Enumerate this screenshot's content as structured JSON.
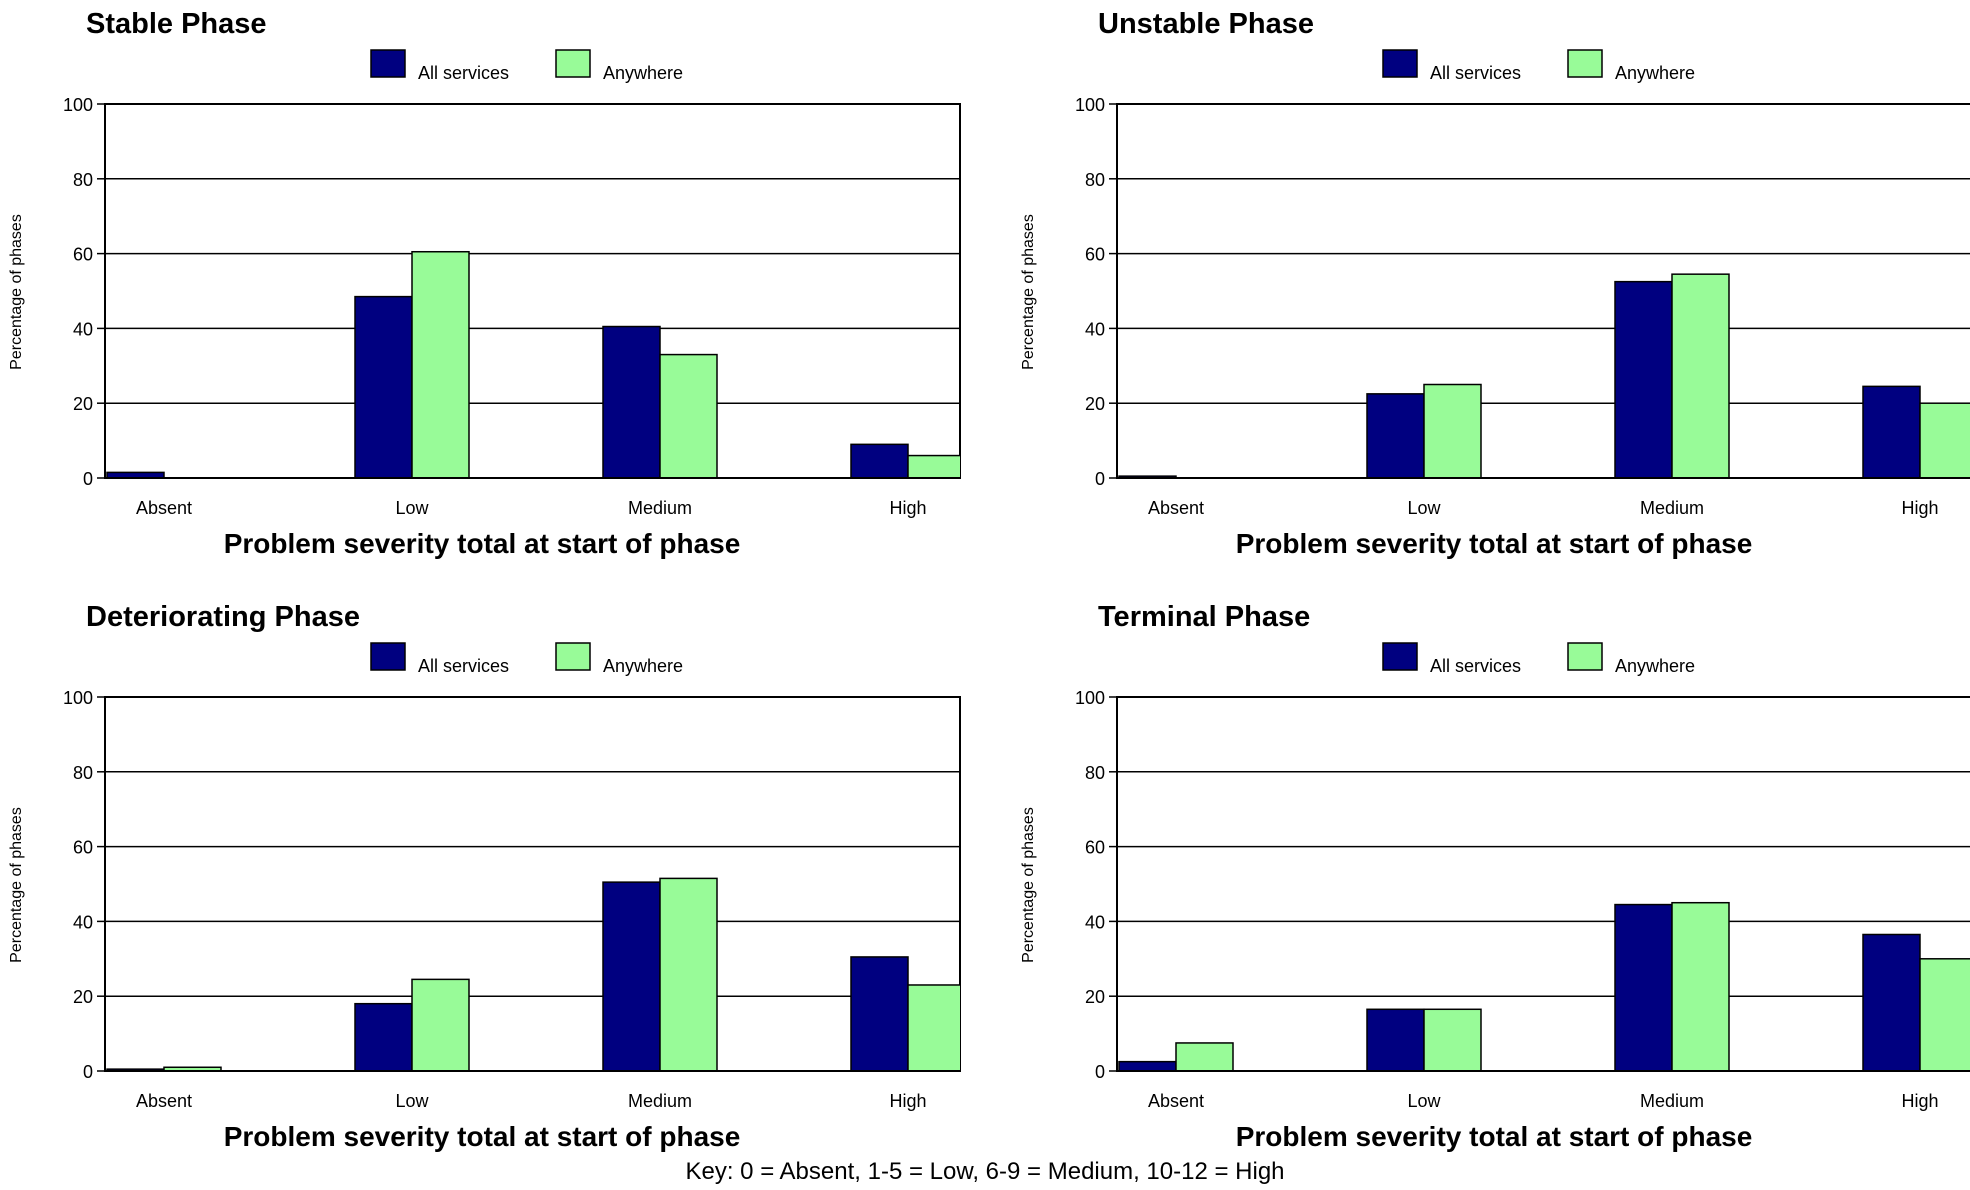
{
  "chart_data": [
    {
      "type": "bar",
      "title": "Stable Phase",
      "xlabel": "Problem severity total at start of phase",
      "ylabel": "Percentage of phases",
      "ylim": [
        0,
        100
      ],
      "yticks": [
        0,
        20,
        40,
        60,
        80,
        100
      ],
      "grid": true,
      "legend_position": "top-center",
      "categories": [
        "Absent",
        "Low",
        "Medium",
        "High"
      ],
      "series": [
        {
          "name": "All services",
          "color": "#000080",
          "values": [
            1.5,
            48.5,
            40.5,
            9
          ]
        },
        {
          "name": "Anywhere",
          "color": "#98fb98",
          "values": [
            0,
            60.5,
            33,
            6
          ]
        }
      ]
    },
    {
      "type": "bar",
      "title": "Unstable Phase",
      "xlabel": "Problem severity total at start of phase",
      "ylabel": "Percentage of phases",
      "ylim": [
        0,
        100
      ],
      "yticks": [
        0,
        20,
        40,
        60,
        80,
        100
      ],
      "grid": true,
      "legend_position": "top-center",
      "categories": [
        "Absent",
        "Low",
        "Medium",
        "High"
      ],
      "series": [
        {
          "name": "All services",
          "color": "#000080",
          "values": [
            0.5,
            22.5,
            52.5,
            24.5
          ]
        },
        {
          "name": "Anywhere",
          "color": "#98fb98",
          "values": [
            0,
            25,
            54.5,
            20
          ]
        }
      ]
    },
    {
      "type": "bar",
      "title": "Deteriorating Phase",
      "xlabel": "Problem severity total at start of phase",
      "ylabel": "Percentage of phases",
      "ylim": [
        0,
        100
      ],
      "yticks": [
        0,
        20,
        40,
        60,
        80,
        100
      ],
      "grid": true,
      "legend_position": "top-center",
      "categories": [
        "Absent",
        "Low",
        "Medium",
        "High"
      ],
      "series": [
        {
          "name": "All services",
          "color": "#000080",
          "values": [
            0.5,
            18,
            50.5,
            30.5
          ]
        },
        {
          "name": "Anywhere",
          "color": "#98fb98",
          "values": [
            1,
            24.5,
            51.5,
            23
          ]
        }
      ]
    },
    {
      "type": "bar",
      "title": "Terminal Phase",
      "xlabel": "Problem severity total at start of phase",
      "ylabel": "Percentage of phases",
      "ylim": [
        0,
        100
      ],
      "yticks": [
        0,
        20,
        40,
        60,
        80,
        100
      ],
      "grid": true,
      "legend_position": "top-center",
      "categories": [
        "Absent",
        "Low",
        "Medium",
        "High"
      ],
      "series": [
        {
          "name": "All services",
          "color": "#000080",
          "values": [
            2.5,
            16.5,
            44.5,
            36.5
          ]
        },
        {
          "name": "Anywhere",
          "color": "#98fb98",
          "values": [
            7.5,
            16.5,
            45,
            30
          ]
        }
      ]
    }
  ],
  "key_text": "Key: 0 = Absent, 1-5 = Low, 6-9 = Medium, 10-12 = High"
}
